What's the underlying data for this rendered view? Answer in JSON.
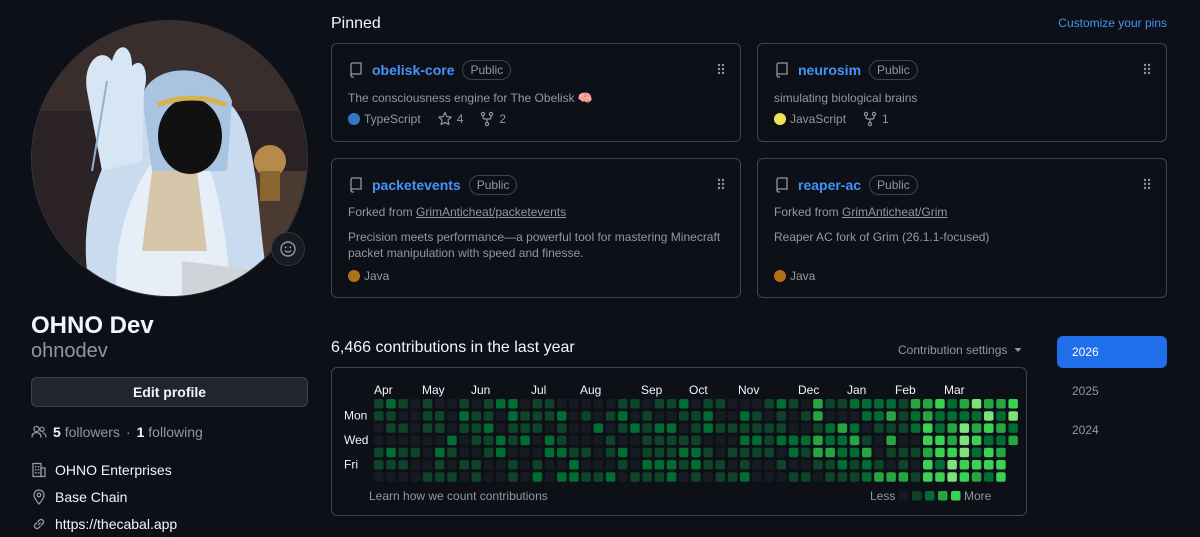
{
  "profile": {
    "full_name": "OHNO Dev",
    "username": "ohnodev",
    "edit_label": "Edit profile",
    "followers_count": "5",
    "followers_label": "followers",
    "separator": "·",
    "following_count": "1",
    "following_label": "following",
    "organization": "OHNO Enterprises",
    "location": "Base Chain",
    "website": "https://thecabal.app"
  },
  "pinned": {
    "title": "Pinned",
    "customize_label": "Customize your pins",
    "repos": [
      {
        "name": "obelisk-core",
        "visibility": "Public",
        "description": "The consciousness engine for The Obelisk 🧠",
        "forked_prefix": "",
        "forked_from": "",
        "language": "TypeScript",
        "language_color": "#3178c6",
        "stars": "4",
        "forks": "2"
      },
      {
        "name": "neurosim",
        "visibility": "Public",
        "description": "simulating biological brains",
        "forked_prefix": "",
        "forked_from": "",
        "language": "JavaScript",
        "language_color": "#f1e05a",
        "stars": "",
        "forks": "1"
      },
      {
        "name": "packetevents",
        "visibility": "Public",
        "description": "Precision meets performance—a powerful tool for mastering Minecraft packet manipulation with speed and finesse.",
        "forked_prefix": "Forked from ",
        "forked_from": "GrimAnticheat/packetevents",
        "language": "Java",
        "language_color": "#b07219",
        "stars": "",
        "forks": ""
      },
      {
        "name": "reaper-ac",
        "visibility": "Public",
        "description": "Reaper AC fork of Grim (26.1.1-focused)",
        "forked_prefix": "Forked from ",
        "forked_from": "GrimAnticheat/Grim",
        "language": "Java",
        "language_color": "#b07219",
        "stars": "",
        "forks": ""
      }
    ]
  },
  "contributions": {
    "title": "6,466 contributions in the last year",
    "settings_label": "Contribution settings",
    "months": [
      "Apr",
      "May",
      "Jun",
      "Jul",
      "Aug",
      "Sep",
      "Oct",
      "Nov",
      "Dec",
      "Jan",
      "Feb",
      "Mar"
    ],
    "days": [
      "Mon",
      "Wed",
      "Fri"
    ],
    "learn_label": "Learn how we count contributions",
    "less_label": "Less",
    "more_label": "More",
    "level_colors": [
      "#161b22",
      "#0e4429",
      "#006d32",
      "#26a641",
      "#39d353",
      "#7ee27a"
    ],
    "years": [
      "2026",
      "2025",
      "2024"
    ],
    "selected_year": "2026"
  },
  "colors": {
    "accent": "#4493f8",
    "background": "#0d1117",
    "border": "#3d444d",
    "muted": "#9198a1"
  }
}
